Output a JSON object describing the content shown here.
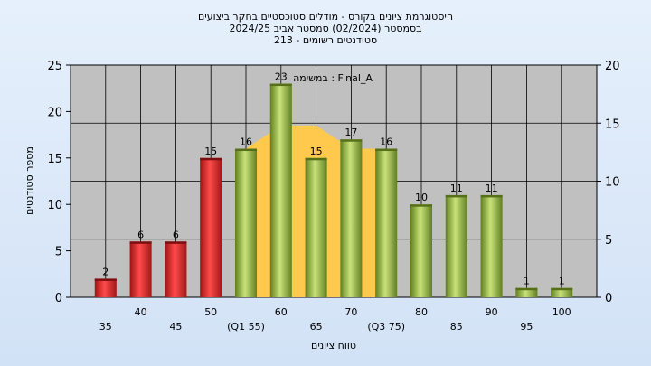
{
  "title_lines": [
    "היסטוגרמת ציונים בקורס - מודלים סטוכסטיים בחקר ביצועים",
    "בסמסטר  (02/2024)  סמסטר אביב 2024/25",
    "213 - סטודנטים רשומים"
  ],
  "chart_data": {
    "type": "bar",
    "categories": [
      "35",
      "40",
      "45",
      "50",
      "(Q1 55)",
      "60",
      "65",
      "70",
      "(Q3 75)",
      "80",
      "85",
      "90",
      "95",
      "100"
    ],
    "values": [
      2,
      6,
      6,
      15,
      16,
      23,
      15,
      17,
      16,
      10,
      11,
      11,
      1,
      1
    ],
    "data_labels": [
      "2",
      "6",
      "6",
      "15",
      "16",
      "23",
      "15",
      "17",
      "16",
      "10",
      "11",
      "11",
      "1",
      "1"
    ],
    "bar_colors": [
      "#d62828",
      "#d62828",
      "#d62828",
      "#d62828",
      "#9bbb3c",
      "#9bbb3c",
      "#9bbb3c",
      "#9bbb3c",
      "#9bbb3c",
      "#9bbb3c",
      "#9bbb3c",
      "#9bbb3c",
      "#9bbb3c",
      "#9bbb3c"
    ],
    "xlabel": "טווח ציונים",
    "ylabel": "מספר סטודנטים",
    "ylim": [
      0,
      25
    ],
    "y_ticks": [
      0,
      5,
      10,
      15,
      20,
      25
    ],
    "y2lim": [
      0,
      20
    ],
    "y2_ticks": [
      0,
      5,
      10,
      15,
      20
    ],
    "grid": true,
    "highlight_area": {
      "label": "במשימה : Final_A",
      "color": "#ffc94d",
      "x": [
        "(Q1 55)",
        "60",
        "65",
        "70",
        "(Q3 75)"
      ],
      "values": [
        16,
        18.5,
        18.5,
        16,
        16
      ]
    }
  }
}
